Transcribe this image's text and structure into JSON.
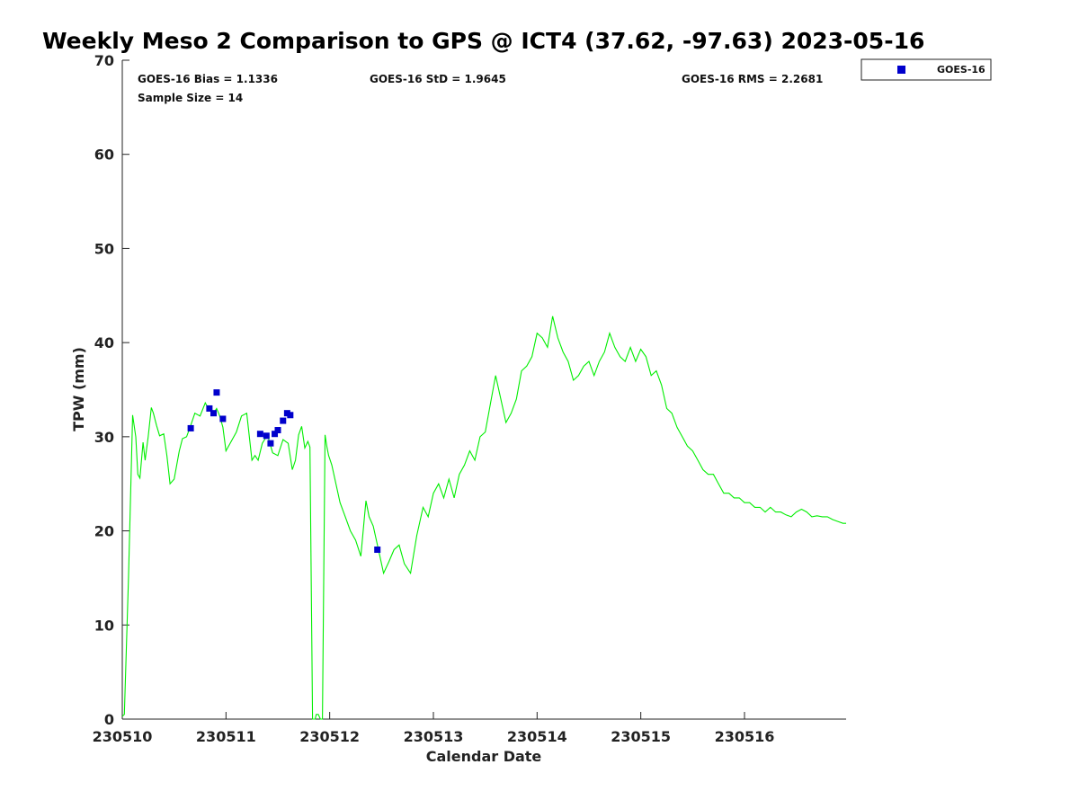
{
  "chart_data": {
    "type": "line",
    "title": "Weekly Meso 2 Comparison to GPS @ ICT4 (37.62, -97.63) 2023-05-16",
    "xlabel": "Calendar Date",
    "ylabel": "TPW (mm)",
    "xlim": [
      0,
      6.98
    ],
    "ylim": [
      0,
      70
    ],
    "x_tick_values": [
      0,
      1,
      2,
      3,
      4,
      5,
      6
    ],
    "x_tick_labels": [
      "230510",
      "230511",
      "230512",
      "230513",
      "230514",
      "230515",
      "230516"
    ],
    "y_ticks": [
      0,
      10,
      20,
      30,
      40,
      50,
      60,
      70
    ],
    "grid": false,
    "legend_position": "top-right",
    "stats": {
      "bias": "GOES-16 Bias = 1.1336",
      "std": "GOES-16 StD = 1.9645",
      "rms": "GOES-16 RMS = 2.2681",
      "sample": "Sample Size = 14"
    },
    "series": [
      {
        "name": "GOES-16",
        "kind": "scatter",
        "color": "#0000cc",
        "x": [
          0.66,
          0.84,
          0.88,
          0.91,
          0.97,
          1.33,
          1.39,
          1.43,
          1.47,
          1.5,
          1.55,
          1.59,
          1.62,
          2.46
        ],
        "y": [
          30.9,
          33.0,
          32.5,
          34.7,
          31.9,
          30.3,
          30.1,
          29.3,
          30.3,
          30.7,
          31.7,
          32.5,
          32.3,
          18.0
        ]
      },
      {
        "kind": "line",
        "color": "#00ee00",
        "x": [
          0.0,
          0.02,
          0.06,
          0.1,
          0.13,
          0.15,
          0.17,
          0.2,
          0.22,
          0.25,
          0.28,
          0.3,
          0.33,
          0.36,
          0.4,
          0.43,
          0.46,
          0.5,
          0.55,
          0.58,
          0.62,
          0.66,
          0.7,
          0.75,
          0.8,
          0.84,
          0.88,
          0.91,
          0.94,
          0.97,
          1.0,
          1.05,
          1.1,
          1.15,
          1.2,
          1.25,
          1.28,
          1.31,
          1.35,
          1.4,
          1.45,
          1.5,
          1.55,
          1.6,
          1.64,
          1.67,
          1.7,
          1.73,
          1.76,
          1.79,
          1.81,
          1.835,
          1.86,
          1.87,
          1.89,
          1.91,
          1.93,
          1.955,
          1.975,
          1.99,
          2.02,
          2.06,
          2.1,
          2.15,
          2.2,
          2.25,
          2.3,
          2.35,
          2.38,
          2.42,
          2.47,
          2.52,
          2.57,
          2.62,
          2.67,
          2.72,
          2.78,
          2.84,
          2.9,
          2.95,
          3.0,
          3.05,
          3.1,
          3.15,
          3.2,
          3.25,
          3.3,
          3.35,
          3.4,
          3.45,
          3.5,
          3.55,
          3.6,
          3.65,
          3.7,
          3.75,
          3.8,
          3.85,
          3.9,
          3.95,
          4.0,
          4.05,
          4.1,
          4.15,
          4.2,
          4.25,
          4.3,
          4.35,
          4.4,
          4.45,
          4.5,
          4.55,
          4.6,
          4.65,
          4.7,
          4.75,
          4.8,
          4.85,
          4.9,
          4.95,
          5.0,
          5.05,
          5.1,
          5.15,
          5.2,
          5.25,
          5.3,
          5.35,
          5.4,
          5.45,
          5.5,
          5.55,
          5.6,
          5.65,
          5.7,
          5.75,
          5.8,
          5.85,
          5.9,
          5.95,
          6.0,
          6.05,
          6.1,
          6.15,
          6.2,
          6.25,
          6.3,
          6.35,
          6.4,
          6.45,
          6.5,
          6.55,
          6.6,
          6.65,
          6.7,
          6.75,
          6.8,
          6.85,
          6.9,
          6.95,
          6.98
        ],
        "y": [
          0.3,
          0.5,
          15.0,
          32.3,
          30.0,
          26.0,
          25.6,
          29.4,
          27.5,
          30.0,
          33.1,
          32.5,
          31.2,
          30.1,
          30.3,
          28.0,
          25.0,
          25.5,
          28.5,
          29.8,
          30.0,
          31.2,
          32.5,
          32.2,
          33.6,
          32.8,
          32.5,
          33.0,
          32.2,
          31.0,
          28.5,
          29.5,
          30.5,
          32.2,
          32.5,
          27.5,
          28.0,
          27.5,
          29.3,
          30.2,
          28.3,
          28.0,
          29.7,
          29.3,
          26.5,
          27.5,
          30.2,
          31.1,
          28.8,
          29.5,
          28.9,
          0.0,
          0.0,
          0.5,
          0.5,
          0.0,
          0.0,
          30.2,
          28.8,
          28.0,
          27.0,
          25.0,
          23.0,
          21.5,
          20.0,
          19.0,
          17.3,
          23.2,
          21.5,
          20.5,
          18.0,
          15.5,
          16.7,
          18.0,
          18.5,
          16.5,
          15.5,
          19.5,
          22.5,
          21.5,
          24.0,
          25.0,
          23.5,
          25.5,
          23.5,
          26.0,
          27.0,
          28.5,
          27.5,
          30.0,
          30.5,
          33.5,
          36.5,
          34.0,
          31.5,
          32.5,
          34.0,
          37.0,
          37.5,
          38.5,
          41.0,
          40.5,
          39.5,
          42.8,
          40.5,
          39.0,
          38.0,
          36.0,
          36.5,
          37.5,
          38.0,
          36.5,
          38.0,
          39.0,
          41.0,
          39.5,
          38.5,
          38.0,
          39.5,
          38.0,
          39.3,
          38.5,
          36.5,
          37.0,
          35.5,
          33.0,
          32.5,
          31.0,
          30.0,
          29.0,
          28.5,
          27.5,
          26.5,
          26.0,
          26.0,
          25.0,
          24.0,
          24.0,
          23.5,
          23.5,
          23.0,
          23.0,
          22.5,
          22.5,
          22.0,
          22.5,
          22.0,
          22.0,
          21.7,
          21.5,
          22.0,
          22.3,
          22.0,
          21.5,
          21.6,
          21.5,
          21.5,
          21.2,
          21.0,
          20.8,
          20.8
        ]
      }
    ]
  }
}
